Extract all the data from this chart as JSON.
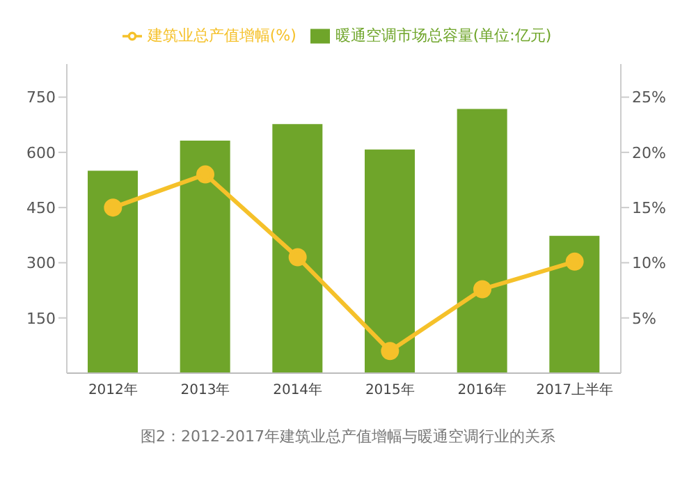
{
  "chart_data": {
    "type": "bar",
    "categories": [
      "2012年",
      "2013年",
      "2014年",
      "2015年",
      "2016年",
      "2017上半年"
    ],
    "series": [
      {
        "name": "暖通空调市场总容量(单位:亿元)",
        "color": "#6fa52a",
        "values": [
          550,
          632,
          677,
          608,
          718,
          373
        ]
      },
      {
        "name": "建筑业总产值增幅(%)",
        "type": "line",
        "axis": "y2",
        "color": "#f5c12a",
        "values": [
          15,
          18,
          10.5,
          2,
          7.6,
          10.1
        ]
      }
    ],
    "ylim": [
      0,
      840
    ],
    "yticks": [
      150,
      300,
      450,
      600,
      750
    ],
    "y2lim": [
      0,
      28
    ],
    "y2ticks": [
      {
        "value": 5,
        "label": "5%"
      },
      {
        "value": 10,
        "label": "10%"
      },
      {
        "value": 15,
        "label": "15%"
      },
      {
        "value": 20,
        "label": "20%"
      },
      {
        "value": 25,
        "label": "25%"
      }
    ],
    "legend": "top",
    "marker": "circle",
    "annotations": [
      "图2：2012-2017年建筑业总产值增幅与暖通空调行业的关系"
    ]
  }
}
